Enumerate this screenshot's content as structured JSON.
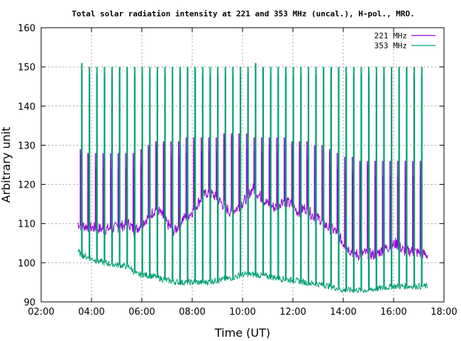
{
  "chart_data": {
    "type": "line",
    "title": "Total solar radiation intensity at 221 and 353 MHz (uncal.), H-pol., MRO.",
    "xlabel": "Time (UT)",
    "ylabel": "Arbitrary unit",
    "xlim": [
      2,
      18
    ],
    "ylim": [
      90,
      160
    ],
    "xticks": [
      2,
      4,
      6,
      8,
      10,
      12,
      14,
      16,
      18
    ],
    "xtick_labels": [
      "02:00",
      "04:00",
      "06:00",
      "08:00",
      "10:00",
      "12:00",
      "14:00",
      "16:00",
      "18:00"
    ],
    "yticks": [
      90,
      100,
      110,
      120,
      130,
      140,
      150,
      160
    ],
    "ytick_labels": [
      "90",
      "100",
      "110",
      "120",
      "130",
      "140",
      "150",
      "160"
    ],
    "grid": true,
    "legend_position": "top-right",
    "series": [
      {
        "name": "221 MHz",
        "color": "#9400d3",
        "baseline": {
          "x": [
            3.45,
            3.6,
            4.0,
            4.5,
            5.0,
            5.5,
            5.7,
            6.0,
            6.3,
            6.6,
            7.0,
            7.3,
            7.6,
            8.0,
            8.3,
            8.6,
            8.9,
            9.2,
            9.5,
            9.8,
            10.1,
            10.4,
            10.7,
            11.0,
            11.3,
            11.6,
            11.9,
            12.2,
            12.5,
            12.8,
            13.1,
            13.4,
            13.7,
            14.0,
            14.3,
            14.6,
            14.9,
            15.2,
            15.5,
            15.8,
            16.1,
            16.4,
            16.7,
            17.0,
            17.35
          ],
          "y": [
            110,
            109.5,
            109,
            108.5,
            109,
            110,
            108,
            110,
            112,
            114,
            110,
            108,
            111,
            113,
            116,
            118,
            117,
            115,
            113,
            114,
            116,
            119,
            117,
            115,
            114,
            116,
            115,
            113,
            114,
            112,
            111,
            109,
            108,
            105,
            103,
            102,
            102.5,
            102,
            103,
            104,
            105,
            103,
            103,
            102.5,
            102
          ]
        },
        "calibration_spikes": {
          "x": [
            3.55,
            3.85,
            4.15,
            4.45,
            4.75,
            5.05,
            5.35,
            5.65,
            5.95,
            6.25,
            6.55,
            6.85,
            7.15,
            7.45,
            7.75,
            8.05,
            8.35,
            8.65,
            8.95,
            9.25,
            9.55,
            9.85,
            10.15,
            10.45,
            10.75,
            11.05,
            11.35,
            11.65,
            11.95,
            12.25,
            12.55,
            12.85,
            13.15,
            13.45,
            13.75,
            14.05,
            14.35,
            14.65,
            14.95,
            15.25,
            15.55,
            15.85,
            16.15,
            16.45,
            16.75,
            17.05
          ],
          "y": [
            129,
            128,
            128,
            128,
            128,
            128,
            128,
            128,
            129,
            130,
            131,
            131,
            131,
            131,
            132,
            132,
            132,
            132,
            132,
            133,
            133,
            133,
            133,
            132,
            132,
            132,
            132,
            132,
            131,
            131,
            131,
            130,
            130,
            129,
            128,
            127,
            127,
            126,
            126,
            126,
            126,
            126,
            126,
            126,
            126,
            126
          ]
        }
      },
      {
        "name": "353 MHz",
        "color": "#009e73",
        "baseline": {
          "x": [
            3.45,
            3.6,
            4.0,
            4.5,
            5.0,
            5.5,
            5.8,
            6.0,
            6.5,
            7.0,
            7.5,
            8.0,
            8.5,
            9.0,
            9.5,
            10.0,
            10.5,
            11.0,
            11.5,
            12.0,
            12.5,
            13.0,
            13.5,
            14.0,
            14.5,
            15.0,
            15.5,
            16.0,
            16.5,
            17.0,
            17.35
          ],
          "y": [
            103,
            102,
            101,
            100,
            99.5,
            99,
            97,
            97,
            96.5,
            95.5,
            95,
            95,
            95,
            95.5,
            96,
            97,
            97,
            96.5,
            96,
            95.5,
            95,
            94.5,
            94,
            93,
            93,
            93,
            93.5,
            94,
            94,
            94,
            94
          ]
        },
        "calibration_spikes": {
          "x": [
            3.6,
            3.9,
            4.2,
            4.5,
            4.8,
            5.1,
            5.4,
            5.7,
            6.0,
            6.3,
            6.6,
            6.9,
            7.2,
            7.5,
            7.8,
            8.1,
            8.4,
            8.7,
            9.0,
            9.3,
            9.6,
            9.9,
            10.2,
            10.5,
            10.8,
            11.1,
            11.4,
            11.7,
            12.0,
            12.3,
            12.6,
            12.9,
            13.2,
            13.5,
            13.8,
            14.1,
            14.4,
            14.7,
            15.0,
            15.3,
            15.6,
            15.9,
            16.2,
            16.5,
            16.8,
            17.1
          ],
          "y": [
            151,
            150,
            150,
            150,
            150,
            150,
            150,
            150,
            150,
            150,
            150,
            150,
            150,
            150,
            150,
            150,
            150,
            150,
            150,
            150,
            150,
            150,
            150,
            151,
            150,
            150,
            150,
            150,
            150,
            150,
            150,
            150,
            150,
            150,
            150,
            150,
            150,
            150,
            150,
            150,
            150,
            150,
            150,
            150,
            150,
            150
          ]
        }
      }
    ]
  }
}
